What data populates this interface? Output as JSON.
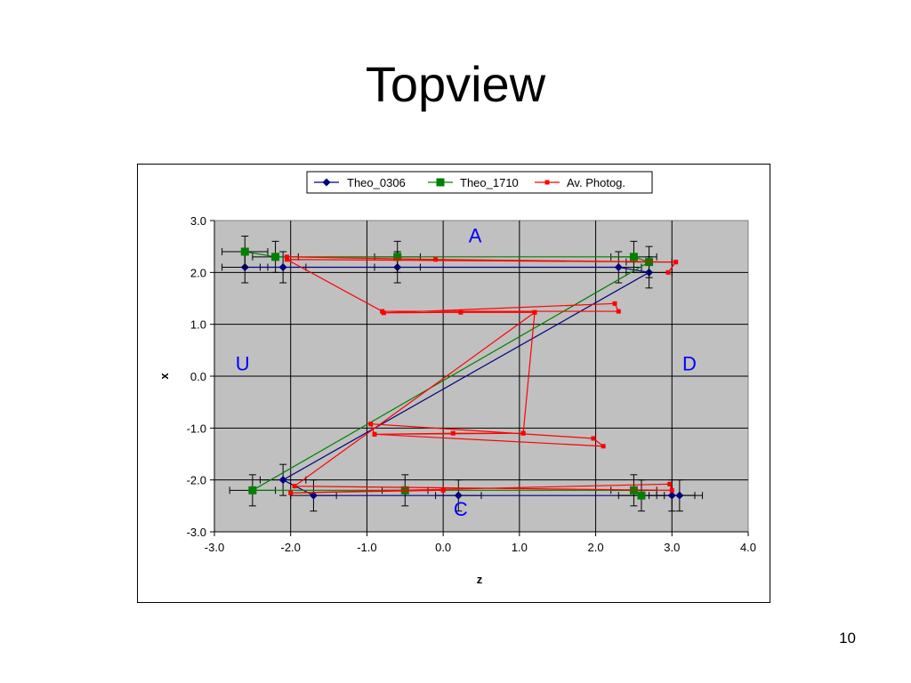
{
  "slide": {
    "title": "Topview",
    "page_number": "10"
  },
  "chart_data": {
    "type": "scatter",
    "xlabel": "z",
    "ylabel": "x",
    "xlim": [
      -3.0,
      4.0
    ],
    "ylim": [
      -3.0,
      3.0
    ],
    "x_ticks": [
      -3.0,
      -2.0,
      -1.0,
      0.0,
      1.0,
      2.0,
      3.0,
      4.0
    ],
    "y_ticks": [
      -3.0,
      -2.0,
      -1.0,
      0.0,
      1.0,
      2.0,
      3.0
    ],
    "grid": true,
    "plot_background": "#c0c0c0",
    "legend_position": "top",
    "series": [
      {
        "name": "Theo_0306",
        "color": "#000080",
        "marker": "diamond",
        "x": [
          -2.6,
          -2.1,
          -0.6,
          2.3,
          2.7,
          -2.1,
          -1.7,
          0.2,
          3.0,
          3.1
        ],
        "y": [
          2.1,
          2.1,
          2.1,
          2.1,
          2.0,
          -2.0,
          -2.3,
          -2.3,
          -2.3,
          -2.3
        ],
        "x_error": 0.3,
        "y_error": 0.3
      },
      {
        "name": "Theo_1710",
        "color": "#008000",
        "marker": "square",
        "x": [
          -2.6,
          -2.2,
          -0.6,
          2.5,
          2.7,
          -2.5,
          -0.5,
          2.5,
          2.6
        ],
        "y": [
          2.4,
          2.3,
          2.3,
          2.3,
          2.2,
          -2.2,
          -2.2,
          -2.2,
          -2.3
        ],
        "x_error": 0.3,
        "y_error": 0.3
      },
      {
        "name": "Av. Photog.",
        "color": "#ff0000",
        "marker": "small-square",
        "x": [
          -2.05,
          -0.1,
          3.05,
          2.95,
          3.05,
          -2.05,
          -0.8,
          2.3,
          2.25,
          -0.78,
          0.23,
          1.2,
          1.05,
          0.13,
          -0.9,
          -0.95,
          1.97,
          2.1,
          -0.9,
          1.05,
          1.2,
          -1.95,
          3.0,
          2.97,
          -2.0,
          0.0
        ],
        "y": [
          2.3,
          2.25,
          2.2,
          2.0,
          2.2,
          2.25,
          1.25,
          1.25,
          1.4,
          1.22,
          1.23,
          1.23,
          -1.1,
          -1.1,
          -1.12,
          -0.92,
          -1.2,
          -1.35,
          -1.12,
          -1.1,
          1.23,
          -2.12,
          -2.2,
          -2.08,
          -2.25,
          -2.2
        ]
      }
    ],
    "annotations": [
      {
        "text": "A",
        "x": 0.42,
        "y": 2.72
      },
      {
        "text": "U",
        "x": -2.63,
        "y": 0.25
      },
      {
        "text": "D",
        "x": 3.23,
        "y": 0.25
      },
      {
        "text": "C",
        "x": 0.23,
        "y": -2.55
      }
    ]
  }
}
